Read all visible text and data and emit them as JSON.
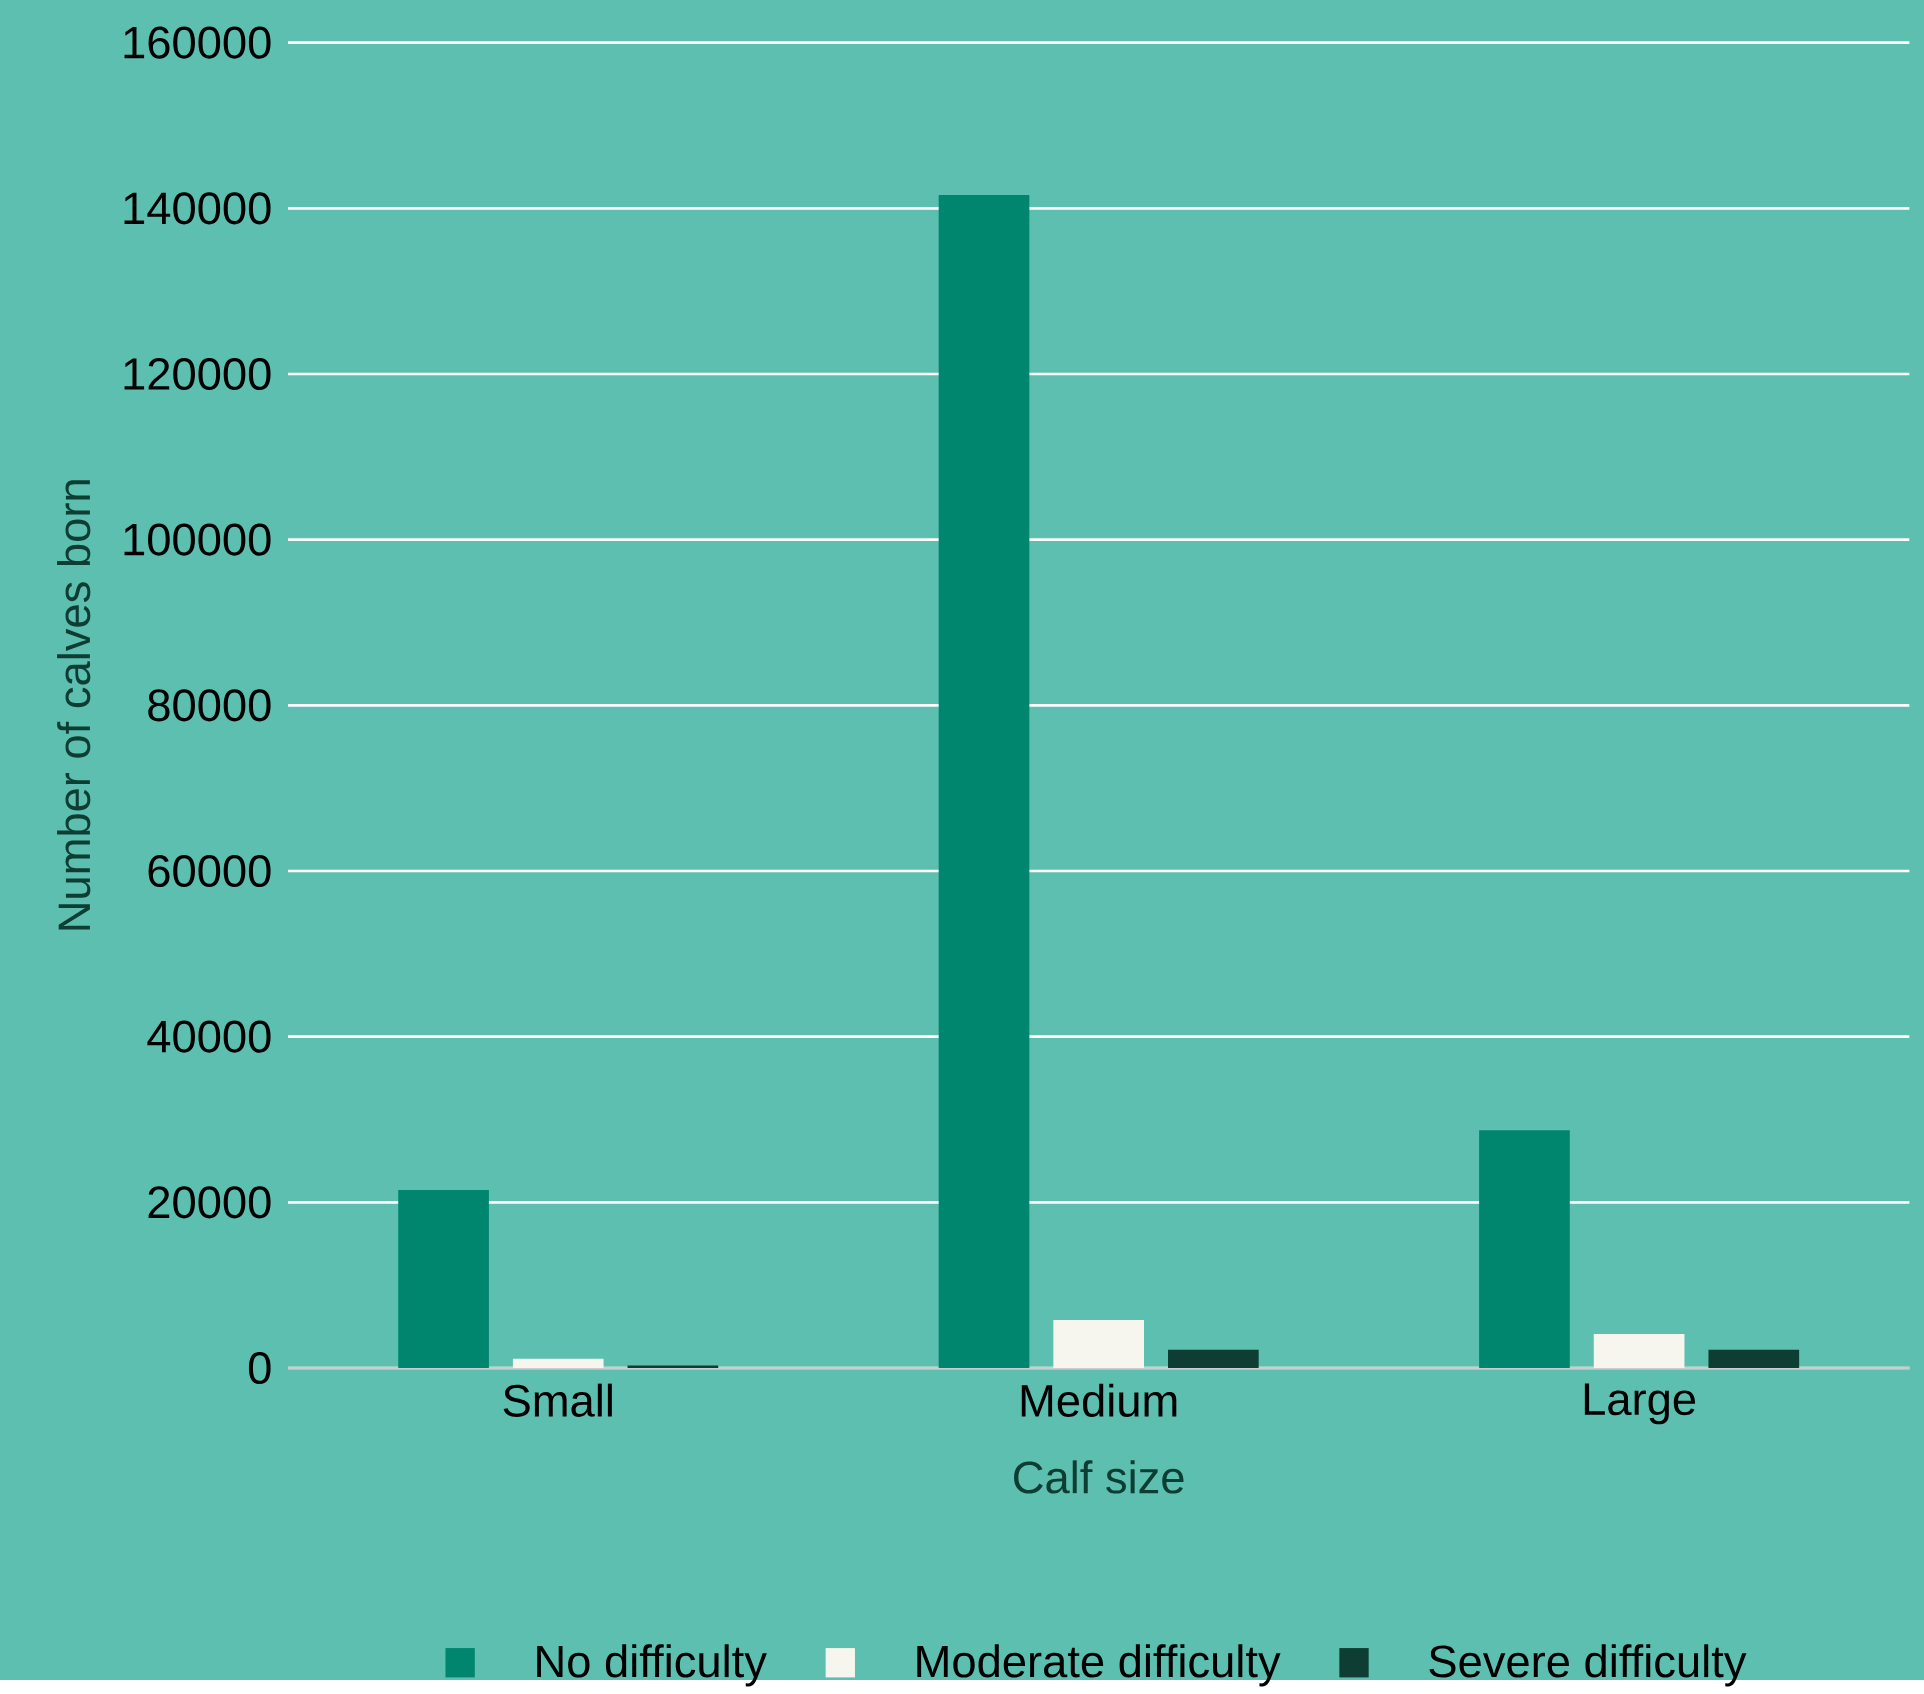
{
  "chart_data": {
    "type": "bar",
    "xlabel": "Calf size",
    "ylabel": "Number of calves born",
    "categories": [
      "Small",
      "Medium",
      "Large"
    ],
    "series": [
      {
        "name": "No difficulty",
        "color": "#00856f",
        "values": [
          21500,
          141600,
          28700
        ]
      },
      {
        "name": "Moderate difficulty",
        "color": "#f7f6ee",
        "values": [
          1100,
          5800,
          4100
        ]
      },
      {
        "name": "Severe difficulty",
        "color": "#0d3d33",
        "values": [
          300,
          2200,
          2200
        ]
      }
    ],
    "ylim": [
      0,
      160000
    ],
    "yticks": [
      0,
      20000,
      40000,
      60000,
      80000,
      100000,
      120000,
      140000,
      160000
    ],
    "grid": "y",
    "legend": "bottom"
  }
}
